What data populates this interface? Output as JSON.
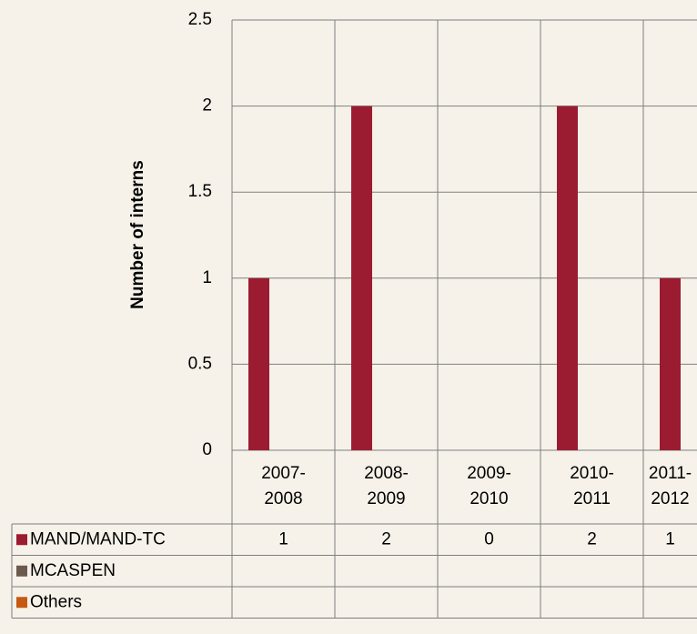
{
  "chart_data": {
    "type": "bar",
    "y_label": "Number of interns",
    "categories": [
      [
        "2007-",
        "2008"
      ],
      [
        "2008-",
        "2009"
      ],
      [
        "2009-",
        "2010"
      ],
      [
        "2010-",
        "2011"
      ],
      [
        "2011-",
        "2012"
      ]
    ],
    "series": [
      {
        "name": "MAND/MAND-TC",
        "color": "#9b1c31",
        "values": [
          1,
          2,
          0,
          2,
          1
        ]
      },
      {
        "name": "MCASPEN",
        "color": "#6b5a4e",
        "values": [
          null,
          null,
          null,
          null,
          null
        ]
      },
      {
        "name": "Others",
        "color": "#c55a11",
        "values": [
          null,
          null,
          null,
          null,
          null
        ]
      }
    ],
    "ylim": [
      0,
      2.5
    ],
    "yticks": [
      0,
      0.5,
      1,
      1.5,
      2,
      2.5
    ],
    "grid": true,
    "data_table": true
  }
}
